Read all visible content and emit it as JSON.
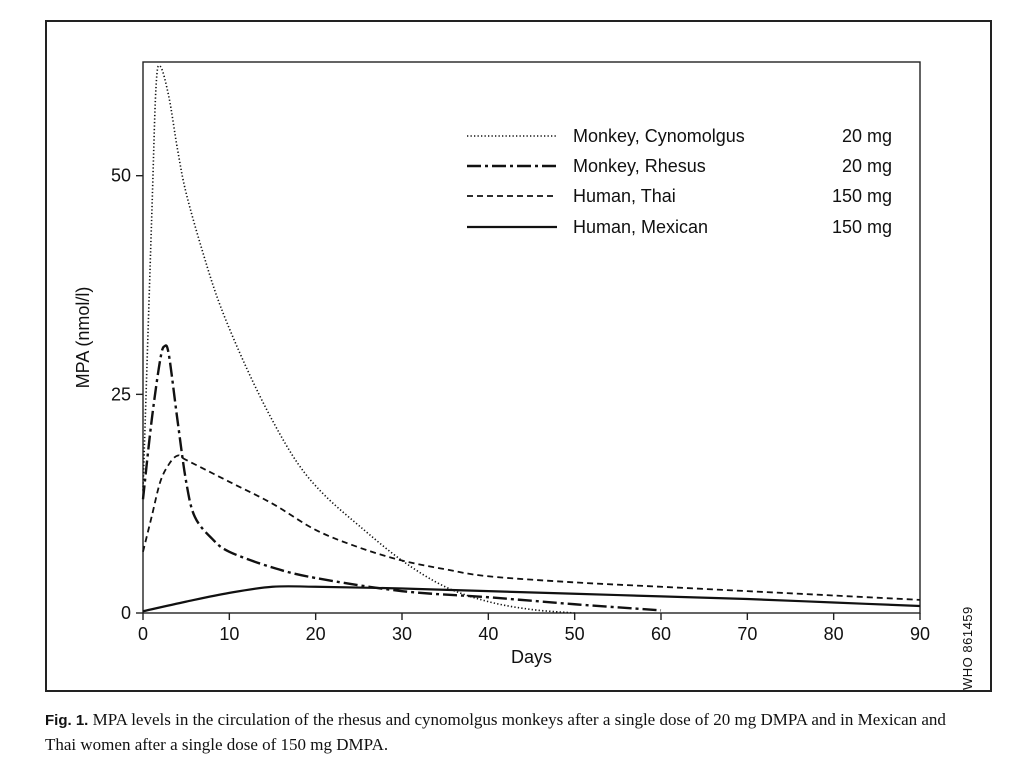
{
  "chart_data": {
    "type": "line",
    "xlabel": "Days",
    "ylabel": "MPA (nmol/l)",
    "xlim": [
      0,
      90
    ],
    "ylim": [
      0,
      63
    ],
    "x_ticks": [
      "0",
      "10",
      "20",
      "30",
      "40",
      "50",
      "60",
      "70",
      "80",
      "90"
    ],
    "y_ticks": [
      "0",
      "25",
      "50"
    ],
    "grid": false,
    "legend_position": "top-right",
    "series": [
      {
        "name": "Monkey, Cynomolgus",
        "dose": "20 mg",
        "style": "dotted",
        "points": [
          [
            0,
            14
          ],
          [
            1,
            45
          ],
          [
            1.5,
            60
          ],
          [
            2,
            62.5
          ],
          [
            3,
            59
          ],
          [
            4,
            53
          ],
          [
            5,
            48
          ],
          [
            7,
            41
          ],
          [
            9,
            35
          ],
          [
            12,
            28
          ],
          [
            15,
            22
          ],
          [
            18,
            17
          ],
          [
            21,
            13.5
          ],
          [
            25,
            10
          ],
          [
            30,
            6
          ],
          [
            35,
            3
          ],
          [
            40,
            1.3
          ],
          [
            45,
            0.4
          ],
          [
            50,
            0
          ]
        ]
      },
      {
        "name": "Monkey, Rhesus",
        "dose": "20 mg",
        "style": "dash-dot",
        "points": [
          [
            0,
            13
          ],
          [
            1,
            22
          ],
          [
            2,
            29
          ],
          [
            2.5,
            30.5
          ],
          [
            3,
            29.5
          ],
          [
            4,
            22
          ],
          [
            5,
            15
          ],
          [
            6,
            11
          ],
          [
            8,
            8.5
          ],
          [
            10,
            7
          ],
          [
            15,
            5.2
          ],
          [
            20,
            4
          ],
          [
            30,
            2.5
          ],
          [
            40,
            1.8
          ],
          [
            50,
            1
          ],
          [
            60,
            0.3
          ]
        ]
      },
      {
        "name": "Human, Thai",
        "dose": "150 mg",
        "style": "dashed",
        "points": [
          [
            0,
            7
          ],
          [
            1,
            11
          ],
          [
            2,
            15
          ],
          [
            3,
            17
          ],
          [
            4,
            18
          ],
          [
            5,
            17.5
          ],
          [
            10,
            15
          ],
          [
            15,
            12.5
          ],
          [
            20,
            9.5
          ],
          [
            25,
            7.5
          ],
          [
            30,
            6
          ],
          [
            35,
            5
          ],
          [
            40,
            4.2
          ],
          [
            50,
            3.5
          ],
          [
            60,
            3
          ],
          [
            70,
            2.5
          ],
          [
            80,
            2
          ],
          [
            90,
            1.5
          ]
        ]
      },
      {
        "name": "Human, Mexican",
        "dose": "150 mg",
        "style": "solid",
        "points": [
          [
            0,
            0.2
          ],
          [
            5,
            1.3
          ],
          [
            10,
            2.3
          ],
          [
            15,
            3
          ],
          [
            20,
            3
          ],
          [
            30,
            2.8
          ],
          [
            40,
            2.5
          ],
          [
            50,
            2.2
          ],
          [
            60,
            1.9
          ],
          [
            70,
            1.6
          ],
          [
            80,
            1.2
          ],
          [
            90,
            0.8
          ]
        ]
      }
    ]
  },
  "side_label": "WHO 861459",
  "caption": {
    "label": "Fig. 1.",
    "text": "MPA levels in the circulation of the rhesus and cynomolgus monkeys after a single dose of 20 mg DMPA and in Mexican and Thai women after a single dose of 150 mg DMPA."
  }
}
